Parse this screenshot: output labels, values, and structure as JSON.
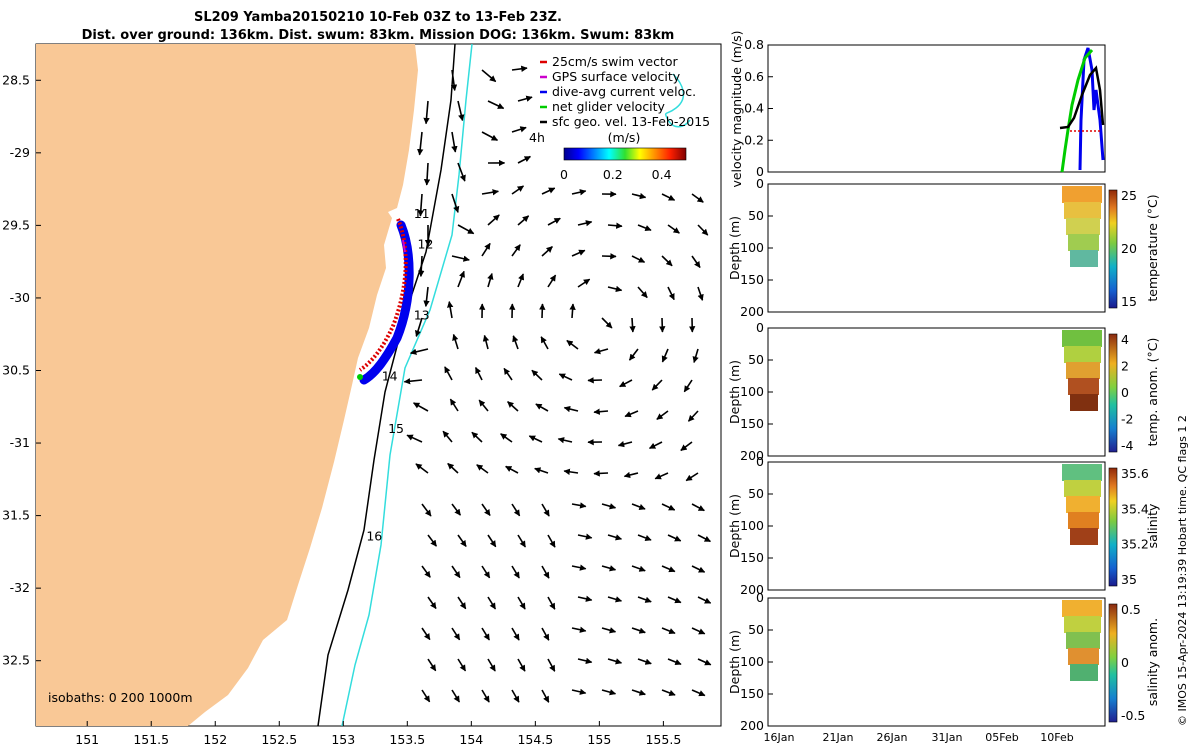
{
  "title": {
    "line1": "SL209 Yamba20150210 10-Feb 03Z to 13-Feb 23Z.",
    "line2": "Dist. over ground: 136km. Dist. swum: 83km. Mission DOG: 136km. Swum: 83km"
  },
  "map": {
    "lon_ticks": [
      "151",
      "151.5",
      "152",
      "152.5",
      "153",
      "153.5",
      "154",
      "154.5",
      "155",
      "155.5"
    ],
    "lat_ticks": [
      "28.5",
      "-29",
      "29.5",
      "-30",
      "30.5",
      "-31",
      "31.5",
      "-32",
      "32.5"
    ],
    "lon_range": [
      150.6,
      155.95
    ],
    "lat_range": [
      28.25,
      32.95
    ],
    "isobaths_label": "isobaths: 0   200  1000m",
    "legend": [
      {
        "label": "25cm/s swim vector",
        "color": "#dd0000"
      },
      {
        "label": "GPS surface velocity",
        "color": "#cc00cc"
      },
      {
        "label": "dive-avg current veloc.",
        "color": "#0000ee"
      },
      {
        "label": "net glider velocity",
        "color": "#00cc00"
      },
      {
        "label": "sfc geo. vel. 13-Feb-2015",
        "color": "#000000"
      }
    ],
    "legend_extra": "4h",
    "colorbar": {
      "title": "(m/s)",
      "ticks": [
        "0",
        "0.2",
        "0.4"
      ],
      "range": [
        0,
        0.5
      ]
    },
    "day_labels": [
      {
        "label": "11",
        "lon": 153.55,
        "lat": 29.45
      },
      {
        "label": "12",
        "lon": 153.58,
        "lat": 29.66
      },
      {
        "label": "13",
        "lon": 153.55,
        "lat": 30.15
      },
      {
        "label": "14",
        "lon": 153.3,
        "lat": 30.57
      },
      {
        "label": "15",
        "lon": 153.35,
        "lat": 30.93
      },
      {
        "label": "16",
        "lon": 153.18,
        "lat": 31.67
      }
    ],
    "colors": {
      "land": "#f9c896",
      "isobath_200": "#000000",
      "isobath_1000": "#33dddd"
    }
  },
  "profiles": {
    "time_ticks": [
      "16Jan",
      "21Jan",
      "26Jan",
      "31Jan",
      "05Feb",
      "10Feb"
    ],
    "velocity": {
      "ylabel": "velocity magnitude (m/s)",
      "yticks": [
        "0",
        "0.2",
        "0.4",
        "0.6",
        "0.8"
      ],
      "ylim": [
        0,
        0.8
      ]
    },
    "panels": [
      {
        "ylabel": "Depth (m)",
        "yticks": [
          "0",
          "50",
          "100",
          "150",
          "200"
        ],
        "cb_label": "temperature (°C)",
        "cb_ticks": [
          "25",
          "20",
          "15"
        ]
      },
      {
        "ylabel": "Depth (m)",
        "yticks": [
          "0",
          "50",
          "100",
          "150",
          "200"
        ],
        "cb_label": "temp. anom. (°C)",
        "cb_ticks": [
          "4",
          "2",
          "0",
          "-2",
          "-4"
        ]
      },
      {
        "ylabel": "Depth (m)",
        "yticks": [
          "0",
          "50",
          "100",
          "150",
          "200"
        ],
        "cb_label": "salinity",
        "cb_ticks": [
          "35.6",
          "35.4",
          "35.2",
          "35"
        ]
      },
      {
        "ylabel": "Depth (m)",
        "yticks": [
          "0",
          "50",
          "100",
          "150",
          "200"
        ],
        "cb_label": "salinity anom.",
        "cb_ticks": [
          "0.5",
          "0",
          "-0.5"
        ]
      }
    ]
  },
  "footer": "© IMOS 15-Apr-2024 13:19:39 Hobart time. QC flags 1  2"
}
